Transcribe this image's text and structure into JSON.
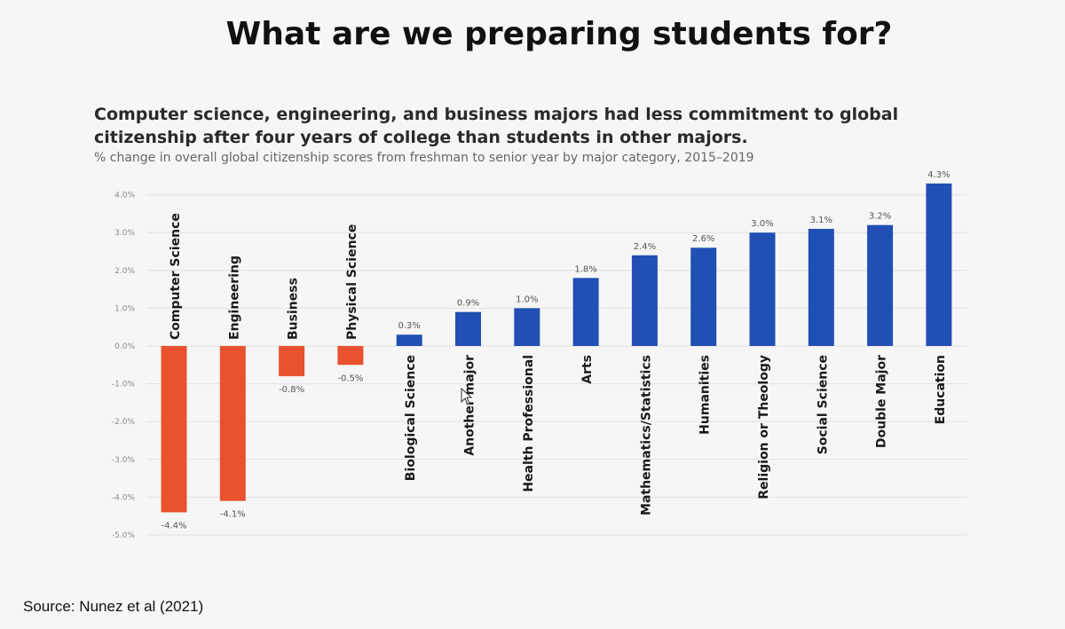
{
  "slide": {
    "title": "What are we preparing students for?",
    "source": "Source: Nunez et al (2021)"
  },
  "colors": {
    "negative": "#e8522e",
    "positive": "#2150b4",
    "grid": "#e2e2e2",
    "tick": "#8a8a8a"
  },
  "chart_data": {
    "type": "bar",
    "title": "Computer science, engineering, and business majors had less commitment to global citizenship after four years of college than students in other majors.",
    "subtitle": "% change in overall global citizenship scores from freshman to senior year by major category, 2015–2019",
    "categories": [
      "Computer Science",
      "Engineering",
      "Business",
      "Physical Science",
      "Biological Science",
      "Another major",
      "Health Professional",
      "Arts",
      "Mathematics/Statistics",
      "Humanities",
      "Religion or Theology",
      "Social Science",
      "Double Major",
      "Education"
    ],
    "values": [
      -4.4,
      -4.1,
      -0.8,
      -0.5,
      0.3,
      0.9,
      1.0,
      1.8,
      2.4,
      2.6,
      3.0,
      3.1,
      3.2,
      4.3
    ],
    "value_labels": [
      "-4.4%",
      "-4.1%",
      "-0.8%",
      "-0.5%",
      "0.3%",
      "0.9%",
      "1.0%",
      "1.8%",
      "2.4%",
      "2.6%",
      "3.0%",
      "3.1%",
      "3.2%",
      "4.3%"
    ],
    "yticks": [
      4.0,
      3.0,
      2.0,
      1.0,
      0.0,
      -1.0,
      -2.0,
      -3.0,
      -4.0,
      -5.0
    ],
    "ytick_labels": [
      "4.0%",
      "3.0%",
      "2.0%",
      "1.0%",
      "0.0%",
      "-1.0%",
      "-2.0%",
      "-3.0%",
      "-4.0%",
      "-5.0%"
    ],
    "ylim": [
      -5.0,
      4.3
    ],
    "grid": true,
    "legend": "none"
  }
}
